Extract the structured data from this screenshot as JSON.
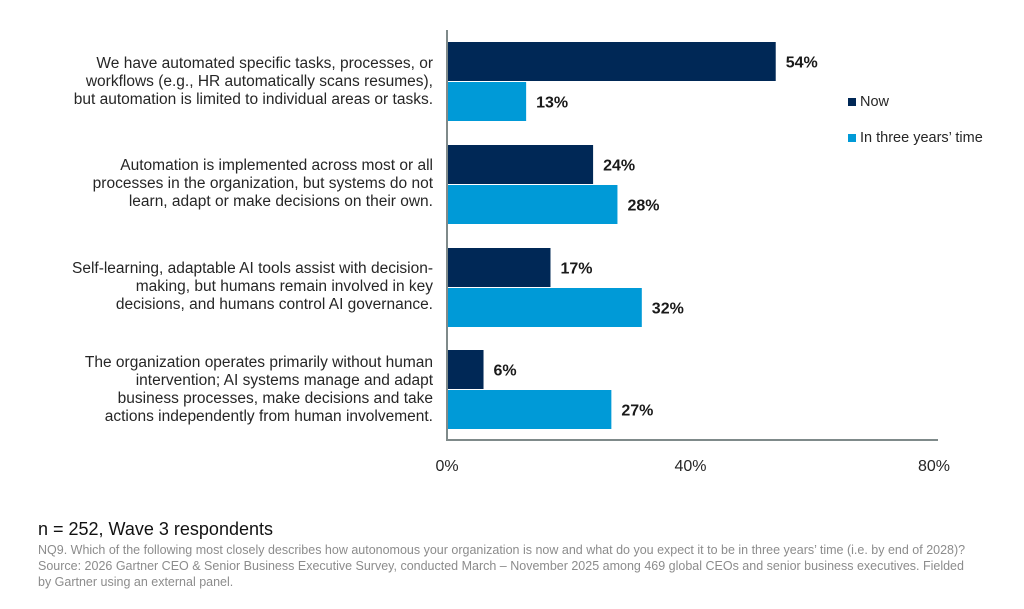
{
  "chart_data": {
    "type": "bar",
    "orientation": "horizontal",
    "title": "",
    "categories": [
      "We have automated specific tasks, processes, or workflows (e.g., HR automatically scans resumes), but automation is limited to individual areas or tasks.",
      "Automation is implemented across most or all processes in the organization, but systems do not learn, adapt or make decisions on their own.",
      "Self-learning, adaptable AI tools assist with decision-making, but humans remain involved in key decisions, and humans control AI governance.",
      "The organization operates primarily without human intervention; AI systems manage and adapt business processes, make decisions and take actions independently from human involvement."
    ],
    "category_lines": [
      [
        "We have automated specific tasks, processes, or",
        "workflows (e.g., HR automatically scans resumes),",
        "but automation is limited to individual areas or tasks."
      ],
      [
        "Automation is implemented across most or all",
        "processes in the organization, but systems do not",
        "learn, adapt or make decisions on their own."
      ],
      [
        "Self-learning, adaptable AI tools assist with decision-",
        "making, but humans remain involved in key",
        "decisions, and humans control AI governance."
      ],
      [
        "The organization operates primarily without human",
        "intervention; AI systems manage and adapt",
        "business processes, make decisions and take",
        "actions independently from human involvement."
      ]
    ],
    "series": [
      {
        "name": "Now",
        "color": "#002856",
        "values": [
          54,
          24,
          17,
          6
        ],
        "labels": [
          "54%",
          "24%",
          "17%",
          "6%"
        ]
      },
      {
        "name": "In three years’ time",
        "color": "#009ad7",
        "values": [
          13,
          28,
          32,
          27
        ],
        "labels": [
          "13%",
          "28%",
          "32%",
          "27%"
        ]
      }
    ],
    "xlabel": "",
    "ylabel": "",
    "xlim": [
      0,
      80
    ],
    "xticks": [
      0,
      40,
      80
    ],
    "xtick_labels": [
      "0%",
      "40%",
      "80%"
    ],
    "grid": false,
    "legend_position": "right"
  },
  "legend": {
    "items": [
      {
        "label": "Now",
        "color": "#002856"
      },
      {
        "label": "In three years’ time",
        "color": "#009ad7"
      }
    ]
  },
  "footer": {
    "sample": "n = 252, Wave 3 respondents",
    "question": "NQ9. Which of the following most closely describes how autonomous your organization is now and what do you expect it to be in three years’ time (i.e. by end of 2028)?",
    "source": "Source: 2026 Gartner CEO & Senior Business Executive Survey, conducted March – November 2025 among 469 global CEOs and senior business executives. Fielded by Gartner using an external panel."
  }
}
